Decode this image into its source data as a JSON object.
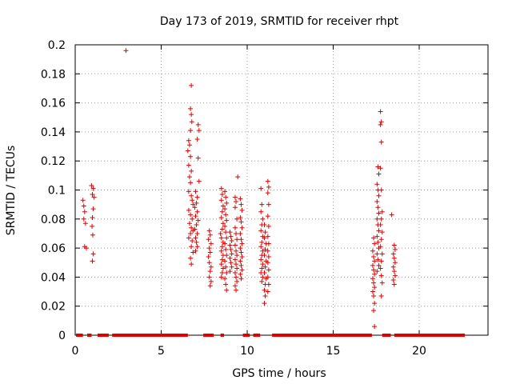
{
  "chart_data": {
    "type": "scatter",
    "title": "Day 173 of 2019, SRMTID for receiver rhpt",
    "xlabel": "GPS time / hours",
    "ylabel": "SRMTID / TECUs",
    "xlim": [
      0,
      24
    ],
    "ylim": [
      0,
      0.2
    ],
    "x_ticks": [
      0,
      5,
      10,
      15,
      20
    ],
    "y_ticks": [
      0,
      0.02,
      0.04,
      0.06,
      0.08,
      0.1,
      0.12,
      0.14,
      0.16,
      0.18,
      0.2
    ],
    "x_tick_labels": [
      "0",
      "5",
      "10",
      "15",
      "20"
    ],
    "y_tick_labels": [
      "0",
      "0.02",
      "0.04",
      "0.06",
      "0.08",
      "0.1",
      "0.12",
      "0.14",
      "0.16",
      "0.18",
      "0.2"
    ],
    "grid": true,
    "marker": "+",
    "color": "#e00000",
    "series": [
      {
        "name": "SRMTID",
        "points": [
          [
            0.45,
            0.093
          ],
          [
            0.5,
            0.089
          ],
          [
            0.55,
            0.085
          ],
          [
            0.5,
            0.08
          ],
          [
            0.6,
            0.077
          ],
          [
            0.55,
            0.061
          ],
          [
            0.65,
            0.06
          ],
          [
            0.95,
            0.103
          ],
          [
            1.05,
            0.101
          ],
          [
            1.0,
            0.097
          ],
          [
            1.1,
            0.095
          ],
          [
            1.05,
            0.087
          ],
          [
            1.0,
            0.081
          ],
          [
            0.98,
            0.075
          ],
          [
            1.02,
            0.069
          ],
          [
            1.05,
            0.056
          ],
          [
            1.0,
            0.051
          ],
          [
            2.95,
            0.196
          ],
          [
            6.75,
            0.172
          ],
          [
            6.7,
            0.156
          ],
          [
            6.75,
            0.152
          ],
          [
            6.78,
            0.147
          ],
          [
            6.7,
            0.141
          ],
          [
            6.6,
            0.134
          ],
          [
            6.65,
            0.131
          ],
          [
            6.55,
            0.127
          ],
          [
            6.7,
            0.123
          ],
          [
            6.6,
            0.117
          ],
          [
            6.75,
            0.113
          ],
          [
            6.65,
            0.109
          ],
          [
            6.7,
            0.105
          ],
          [
            6.6,
            0.099
          ],
          [
            6.75,
            0.096
          ],
          [
            6.8,
            0.093
          ],
          [
            6.85,
            0.09
          ],
          [
            6.6,
            0.086
          ],
          [
            6.7,
            0.083
          ],
          [
            6.8,
            0.08
          ],
          [
            6.65,
            0.077
          ],
          [
            6.75,
            0.074
          ],
          [
            6.85,
            0.072
          ],
          [
            6.7,
            0.07
          ],
          [
            6.6,
            0.067
          ],
          [
            6.8,
            0.065
          ],
          [
            6.75,
            0.061
          ],
          [
            6.85,
            0.057
          ],
          [
            6.7,
            0.053
          ],
          [
            6.75,
            0.049
          ],
          [
            7.15,
            0.145
          ],
          [
            7.2,
            0.141
          ],
          [
            7.1,
            0.135
          ],
          [
            7.15,
            0.122
          ],
          [
            7.2,
            0.106
          ],
          [
            7.0,
            0.099
          ],
          [
            7.1,
            0.095
          ],
          [
            7.05,
            0.091
          ],
          [
            6.95,
            0.088
          ],
          [
            7.1,
            0.085
          ],
          [
            7.0,
            0.082
          ],
          [
            7.15,
            0.079
          ],
          [
            7.05,
            0.076
          ],
          [
            6.95,
            0.073
          ],
          [
            7.1,
            0.07
          ],
          [
            7.0,
            0.067
          ],
          [
            7.05,
            0.064
          ],
          [
            7.1,
            0.061
          ],
          [
            7.0,
            0.058
          ],
          [
            7.8,
            0.072
          ],
          [
            7.85,
            0.069
          ],
          [
            7.75,
            0.066
          ],
          [
            7.9,
            0.063
          ],
          [
            7.8,
            0.06
          ],
          [
            7.85,
            0.057
          ],
          [
            7.75,
            0.054
          ],
          [
            7.8,
            0.05
          ],
          [
            7.9,
            0.047
          ],
          [
            7.85,
            0.044
          ],
          [
            7.8,
            0.04
          ],
          [
            7.9,
            0.037
          ],
          [
            7.85,
            0.034
          ],
          [
            8.5,
            0.101
          ],
          [
            8.55,
            0.097
          ],
          [
            8.5,
            0.093
          ],
          [
            8.6,
            0.089
          ],
          [
            8.55,
            0.085
          ],
          [
            8.5,
            0.081
          ],
          [
            8.6,
            0.077
          ],
          [
            8.55,
            0.073
          ],
          [
            8.45,
            0.07
          ],
          [
            8.5,
            0.067
          ],
          [
            8.6,
            0.064
          ],
          [
            8.55,
            0.061
          ],
          [
            8.5,
            0.058
          ],
          [
            8.6,
            0.055
          ],
          [
            8.55,
            0.052
          ],
          [
            8.5,
            0.049
          ],
          [
            8.6,
            0.046
          ],
          [
            8.55,
            0.043
          ],
          [
            8.5,
            0.04
          ],
          [
            8.7,
            0.099
          ],
          [
            8.75,
            0.095
          ],
          [
            8.8,
            0.091
          ],
          [
            8.7,
            0.087
          ],
          [
            8.75,
            0.083
          ],
          [
            8.8,
            0.079
          ],
          [
            8.7,
            0.075
          ],
          [
            8.75,
            0.071
          ],
          [
            8.8,
            0.067
          ],
          [
            8.7,
            0.063
          ],
          [
            8.75,
            0.059
          ],
          [
            8.8,
            0.055
          ],
          [
            8.7,
            0.051
          ],
          [
            8.75,
            0.047
          ],
          [
            8.8,
            0.043
          ],
          [
            8.7,
            0.039
          ],
          [
            8.75,
            0.035
          ],
          [
            8.8,
            0.031
          ],
          [
            9.0,
            0.071
          ],
          [
            9.05,
            0.068
          ],
          [
            9.1,
            0.065
          ],
          [
            9.0,
            0.062
          ],
          [
            9.05,
            0.059
          ],
          [
            9.1,
            0.056
          ],
          [
            9.0,
            0.053
          ],
          [
            9.05,
            0.05
          ],
          [
            9.1,
            0.047
          ],
          [
            9.0,
            0.044
          ],
          [
            9.3,
            0.095
          ],
          [
            9.35,
            0.092
          ],
          [
            9.3,
            0.088
          ],
          [
            9.4,
            0.08
          ],
          [
            9.3,
            0.074
          ],
          [
            9.35,
            0.07
          ],
          [
            9.4,
            0.066
          ],
          [
            9.3,
            0.062
          ],
          [
            9.35,
            0.058
          ],
          [
            9.4,
            0.055
          ],
          [
            9.3,
            0.052
          ],
          [
            9.35,
            0.049
          ],
          [
            9.4,
            0.046
          ],
          [
            9.3,
            0.043
          ],
          [
            9.35,
            0.04
          ],
          [
            9.4,
            0.037
          ],
          [
            9.3,
            0.034
          ],
          [
            9.35,
            0.031
          ],
          [
            9.45,
            0.109
          ],
          [
            9.6,
            0.094
          ],
          [
            9.65,
            0.09
          ],
          [
            9.7,
            0.086
          ],
          [
            9.6,
            0.081
          ],
          [
            9.65,
            0.078
          ],
          [
            9.7,
            0.074
          ],
          [
            9.6,
            0.07
          ],
          [
            9.65,
            0.066
          ],
          [
            9.7,
            0.063
          ],
          [
            9.6,
            0.06
          ],
          [
            9.65,
            0.057
          ],
          [
            9.7,
            0.054
          ],
          [
            9.6,
            0.051
          ],
          [
            9.65,
            0.048
          ],
          [
            9.7,
            0.045
          ],
          [
            9.6,
            0.042
          ],
          [
            9.65,
            0.039
          ],
          [
            10.8,
            0.101
          ],
          [
            10.85,
            0.09
          ],
          [
            10.8,
            0.085
          ],
          [
            10.9,
            0.08
          ],
          [
            10.85,
            0.076
          ],
          [
            10.8,
            0.072
          ],
          [
            10.9,
            0.068
          ],
          [
            10.85,
            0.064
          ],
          [
            10.8,
            0.061
          ],
          [
            10.9,
            0.058
          ],
          [
            10.85,
            0.055
          ],
          [
            10.8,
            0.052
          ],
          [
            10.9,
            0.049
          ],
          [
            10.85,
            0.046
          ],
          [
            10.8,
            0.043
          ],
          [
            10.9,
            0.04
          ],
          [
            10.85,
            0.037
          ],
          [
            11.0,
            0.076
          ],
          [
            11.05,
            0.071
          ],
          [
            11.0,
            0.067
          ],
          [
            11.1,
            0.063
          ],
          [
            11.05,
            0.059
          ],
          [
            11.0,
            0.055
          ],
          [
            11.1,
            0.051
          ],
          [
            11.05,
            0.047
          ],
          [
            11.0,
            0.043
          ],
          [
            11.1,
            0.039
          ],
          [
            11.05,
            0.035
          ],
          [
            11.0,
            0.031
          ],
          [
            11.05,
            0.027
          ],
          [
            11.0,
            0.022
          ],
          [
            11.2,
            0.106
          ],
          [
            11.25,
            0.102
          ],
          [
            11.2,
            0.098
          ],
          [
            11.25,
            0.09
          ],
          [
            11.2,
            0.082
          ],
          [
            11.25,
            0.075
          ],
          [
            11.2,
            0.068
          ],
          [
            11.25,
            0.063
          ],
          [
            11.2,
            0.058
          ],
          [
            11.25,
            0.054
          ],
          [
            11.2,
            0.05
          ],
          [
            11.25,
            0.045
          ],
          [
            11.2,
            0.04
          ],
          [
            11.25,
            0.035
          ],
          [
            11.2,
            0.03
          ],
          [
            17.35,
            0.067
          ],
          [
            17.4,
            0.063
          ],
          [
            17.3,
            0.058
          ],
          [
            17.35,
            0.054
          ],
          [
            17.4,
            0.051
          ],
          [
            17.3,
            0.048
          ],
          [
            17.35,
            0.045
          ],
          [
            17.4,
            0.042
          ],
          [
            17.3,
            0.039
          ],
          [
            17.35,
            0.036
          ],
          [
            17.4,
            0.033
          ],
          [
            17.3,
            0.03
          ],
          [
            17.35,
            0.027
          ],
          [
            17.4,
            0.022
          ],
          [
            17.35,
            0.017
          ],
          [
            17.4,
            0.006
          ],
          [
            17.6,
            0.116
          ],
          [
            17.65,
            0.111
          ],
          [
            17.55,
            0.104
          ],
          [
            17.6,
            0.1
          ],
          [
            17.65,
            0.096
          ],
          [
            17.55,
            0.092
          ],
          [
            17.6,
            0.088
          ],
          [
            17.65,
            0.084
          ],
          [
            17.55,
            0.08
          ],
          [
            17.6,
            0.076
          ],
          [
            17.65,
            0.072
          ],
          [
            17.55,
            0.068
          ],
          [
            17.6,
            0.064
          ],
          [
            17.65,
            0.06
          ],
          [
            17.55,
            0.056
          ],
          [
            17.6,
            0.052
          ],
          [
            17.65,
            0.048
          ],
          [
            17.55,
            0.044
          ],
          [
            17.75,
            0.154
          ],
          [
            17.8,
            0.147
          ],
          [
            17.75,
            0.145
          ],
          [
            17.8,
            0.133
          ],
          [
            17.75,
            0.115
          ],
          [
            17.8,
            0.1
          ],
          [
            17.85,
            0.085
          ],
          [
            17.8,
            0.08
          ],
          [
            17.75,
            0.076
          ],
          [
            17.85,
            0.071
          ],
          [
            17.8,
            0.066
          ],
          [
            17.75,
            0.061
          ],
          [
            17.85,
            0.056
          ],
          [
            17.8,
            0.051
          ],
          [
            17.75,
            0.046
          ],
          [
            17.8,
            0.041
          ],
          [
            17.85,
            0.036
          ],
          [
            17.8,
            0.027
          ],
          [
            18.4,
            0.083
          ],
          [
            18.55,
            0.062
          ],
          [
            18.6,
            0.059
          ],
          [
            18.5,
            0.056
          ],
          [
            18.55,
            0.053
          ],
          [
            18.6,
            0.05
          ],
          [
            18.5,
            0.047
          ],
          [
            18.55,
            0.044
          ],
          [
            18.6,
            0.041
          ],
          [
            18.5,
            0.038
          ],
          [
            18.55,
            0.035
          ]
        ]
      }
    ],
    "baseline_segments": [
      [
        0.05,
        0.45
      ],
      [
        0.7,
        0.95
      ],
      [
        1.3,
        1.95
      ],
      [
        2.15,
        6.55
      ],
      [
        7.45,
        8.05
      ],
      [
        8.45,
        8.65
      ],
      [
        9.75,
        10.15
      ],
      [
        10.35,
        10.75
      ],
      [
        11.45,
        17.25
      ],
      [
        17.85,
        18.35
      ],
      [
        18.55,
        22.65
      ]
    ]
  }
}
